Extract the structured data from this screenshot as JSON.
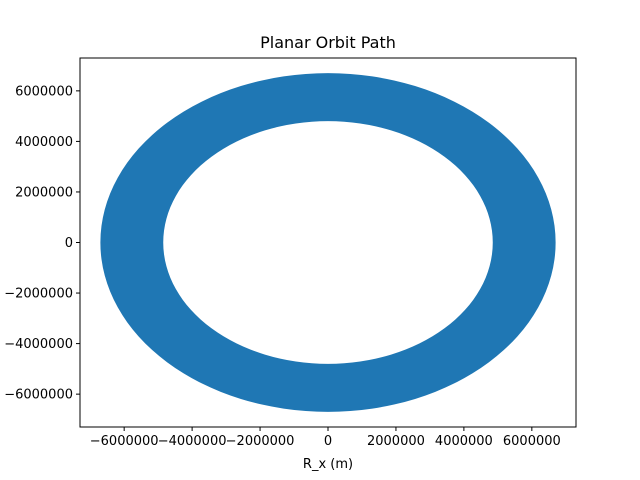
{
  "chart_data": {
    "type": "line",
    "title": "Planar Orbit Path",
    "xlabel": "R_x (m)",
    "ylabel": "",
    "xlim": [
      -7300000,
      7300000
    ],
    "ylim": [
      -7300000,
      7300000
    ],
    "xticks": [
      -6000000,
      -4000000,
      -2000000,
      0,
      2000000,
      4000000,
      6000000
    ],
    "xtick_labels": [
      "−6000000",
      "−4000000",
      "−2000000",
      "0",
      "2000000",
      "4000000",
      "6000000"
    ],
    "yticks": [
      -6000000,
      -4000000,
      -2000000,
      0,
      2000000,
      4000000,
      6000000
    ],
    "ytick_labels": [
      "−6000000",
      "−4000000",
      "−2000000",
      "0",
      "2000000",
      "4000000",
      "6000000"
    ],
    "grid": false,
    "series": [
      {
        "color": "#1f77b4",
        "shape": "filled elliptical band of overlapping orbit traces",
        "outer_extent": {
          "x": [
            -6700000,
            6700000
          ],
          "y": [
            -6700000,
            6700000
          ]
        },
        "inner_extent": {
          "x": [
            -4850000,
            4850000
          ],
          "y": [
            -4800000,
            4800000
          ]
        }
      }
    ]
  }
}
